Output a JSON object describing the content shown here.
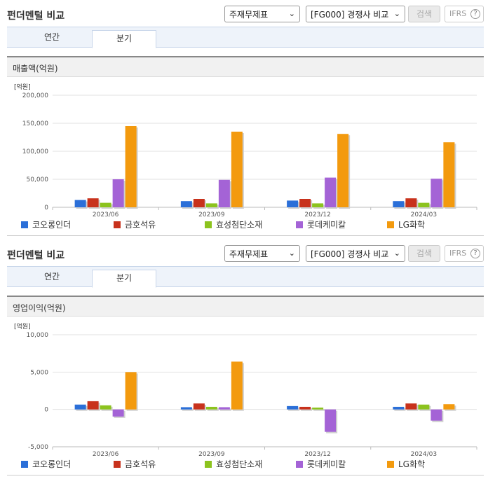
{
  "panels": [
    {
      "title": "펀더멘털 비교",
      "select1": "주재무제표",
      "select2": "[FG000] 경쟁사 비교",
      "search_label": "검색",
      "ifrs_label": "IFRS",
      "tabs": {
        "annual": "연간",
        "quarter": "분기"
      },
      "section_title": "매출액(억원)"
    },
    {
      "title": "펀더멘털 비교",
      "select1": "주재무제표",
      "select2": "[FG000] 경쟁사 비교",
      "search_label": "검색",
      "ifrs_label": "IFRS",
      "tabs": {
        "annual": "연간",
        "quarter": "분기"
      },
      "section_title": "영업이익(억원)"
    }
  ],
  "legend": [
    "코오롱인더",
    "금호석유",
    "효성첨단소재",
    "롯데케미칼",
    "LG화학"
  ],
  "colors": [
    "#2b6fd8",
    "#c8321c",
    "#8cc31e",
    "#a463d6",
    "#f39a0e"
  ],
  "chart_data": [
    {
      "type": "bar",
      "unit_label": "[억원]",
      "categories": [
        "2023/06",
        "2023/09",
        "2023/12",
        "2024/03"
      ],
      "ylim": [
        0,
        200000
      ],
      "yticks": [
        "200,000",
        "150,000",
        "100,000",
        "50,000",
        "0"
      ],
      "series": [
        {
          "name": "코오롱인더",
          "values": [
            13000,
            11000,
            12000,
            11000
          ]
        },
        {
          "name": "금호석유",
          "values": [
            16000,
            15000,
            15000,
            16000
          ]
        },
        {
          "name": "효성첨단소재",
          "values": [
            8000,
            7000,
            7000,
            8000
          ]
        },
        {
          "name": "롯데케미칼",
          "values": [
            50000,
            49000,
            53000,
            51000
          ]
        },
        {
          "name": "LG화학",
          "values": [
            145000,
            135000,
            131000,
            116000
          ]
        }
      ]
    },
    {
      "type": "bar",
      "unit_label": "[억원]",
      "categories": [
        "2023/06",
        "2023/09",
        "2023/12",
        "2024/03"
      ],
      "ylim": [
        -5000,
        10000
      ],
      "yticks": [
        "10,000",
        "5,000",
        "0",
        "-5,000"
      ],
      "series": [
        {
          "name": "코오롱인더",
          "values": [
            650,
            300,
            450,
            350
          ]
        },
        {
          "name": "금호석유",
          "values": [
            1100,
            800,
            350,
            800
          ]
        },
        {
          "name": "효성첨단소재",
          "values": [
            550,
            350,
            250,
            650
          ]
        },
        {
          "name": "롯데케미칼",
          "values": [
            -950,
            300,
            -3000,
            -1500
          ]
        },
        {
          "name": "LG화학",
          "values": [
            5000,
            6400,
            0,
            700
          ]
        }
      ]
    }
  ]
}
